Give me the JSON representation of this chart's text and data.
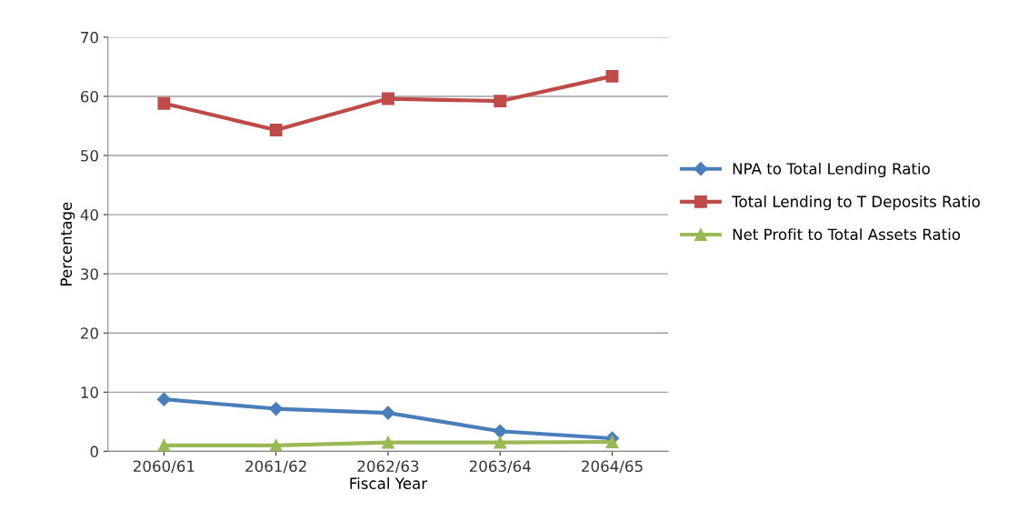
{
  "chart_data": {
    "type": "line",
    "xlabel": "Fiscal Year",
    "ylabel": "Percentage",
    "categories": [
      "2060/61",
      "2061/62",
      "2062/63",
      "2063/64",
      "2064/65"
    ],
    "series": [
      {
        "name": "NPA to Total Lending Ratio",
        "color": "#4a7ebb",
        "marker": "diamond",
        "values": [
          8.8,
          7.2,
          6.5,
          3.4,
          2.2
        ]
      },
      {
        "name": "Total Lending to T Deposits Ratio",
        "color": "#be4b48",
        "marker": "square",
        "values": [
          58.8,
          54.3,
          59.6,
          59.2,
          63.4
        ]
      },
      {
        "name": "Net Profit to Total Assets Ratio",
        "color": "#98b954",
        "marker": "triangle",
        "values": [
          1.0,
          1.0,
          1.5,
          1.5,
          1.6
        ]
      }
    ],
    "ylim": [
      0,
      70
    ],
    "yticks": [
      0,
      10,
      20,
      30,
      40,
      50,
      60,
      70
    ],
    "grid": "y",
    "legend": "right",
    "line_style": "solid"
  }
}
